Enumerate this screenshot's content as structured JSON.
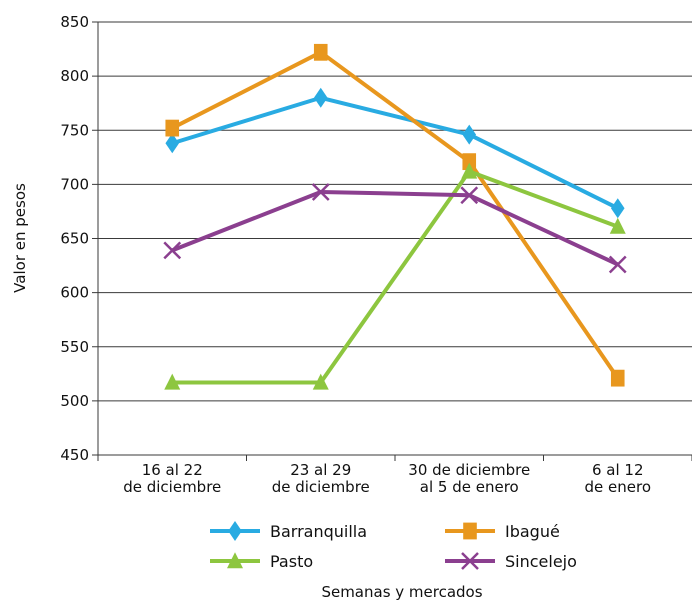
{
  "chart_data": {
    "type": "line",
    "title": "",
    "xlabel": "Semanas y mercados",
    "ylabel": "Valor en pesos",
    "ylim": [
      450,
      850
    ],
    "yticks": [
      450,
      500,
      550,
      600,
      650,
      700,
      750,
      800,
      850
    ],
    "grid": true,
    "legend_position": "bottom",
    "categories": [
      [
        "16 al 22",
        "de diciembre"
      ],
      [
        "23 al 29",
        "de diciembre"
      ],
      [
        "30 de diciembre",
        "al 5 de enero"
      ],
      [
        "6 al 12",
        "de enero"
      ]
    ],
    "series": [
      {
        "name": "Barranquilla",
        "color": "#29abe2",
        "marker": "diamond",
        "values": [
          738,
          780,
          746,
          678
        ]
      },
      {
        "name": "Ibagué",
        "color": "#e8971e",
        "marker": "square",
        "values": [
          752,
          822,
          721,
          521
        ]
      },
      {
        "name": "Pasto",
        "color": "#8dc63f",
        "marker": "triangle",
        "values": [
          517,
          517,
          712,
          661
        ]
      },
      {
        "name": "Sincelejo",
        "color": "#8b3f8f",
        "marker": "x",
        "values": [
          639,
          693,
          690,
          626
        ]
      }
    ]
  }
}
